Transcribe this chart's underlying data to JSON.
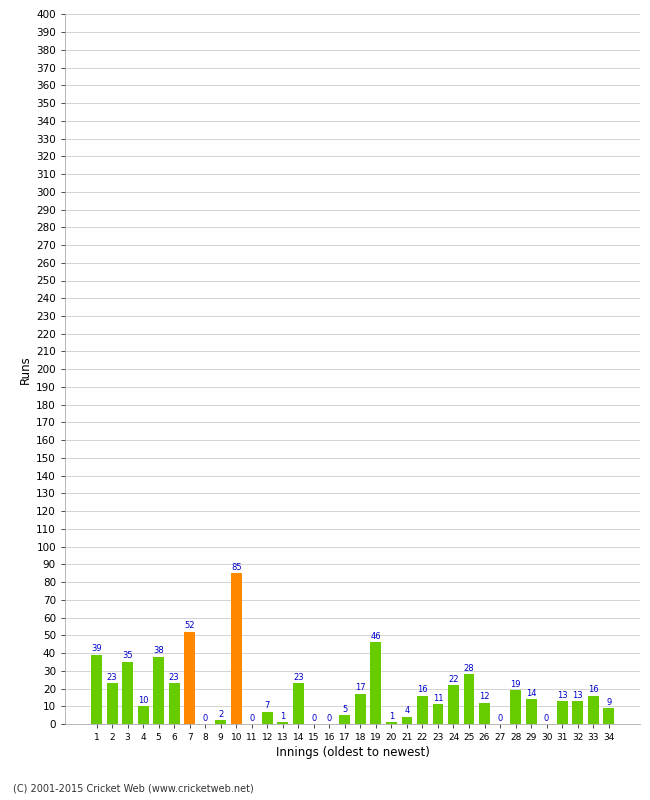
{
  "innings": [
    1,
    2,
    3,
    4,
    5,
    6,
    7,
    8,
    9,
    10,
    11,
    12,
    13,
    14,
    15,
    16,
    17,
    18,
    19,
    20,
    21,
    22,
    23,
    24,
    25,
    26,
    27,
    28,
    29,
    30,
    31,
    32,
    33,
    34
  ],
  "runs": [
    39,
    23,
    35,
    10,
    38,
    23,
    52,
    0,
    2,
    85,
    0,
    7,
    1,
    23,
    0,
    0,
    5,
    17,
    46,
    1,
    4,
    16,
    11,
    22,
    28,
    12,
    0,
    19,
    14,
    0,
    13,
    13,
    16,
    9
  ],
  "colors": [
    "#66cc00",
    "#66cc00",
    "#66cc00",
    "#66cc00",
    "#66cc00",
    "#66cc00",
    "#ff8800",
    "#66cc00",
    "#66cc00",
    "#ff8800",
    "#66cc00",
    "#66cc00",
    "#66cc00",
    "#66cc00",
    "#66cc00",
    "#66cc00",
    "#66cc00",
    "#66cc00",
    "#66cc00",
    "#66cc00",
    "#66cc00",
    "#66cc00",
    "#66cc00",
    "#66cc00",
    "#66cc00",
    "#66cc00",
    "#66cc00",
    "#66cc00",
    "#66cc00",
    "#66cc00",
    "#66cc00",
    "#66cc00",
    "#66cc00",
    "#66cc00"
  ],
  "ylabel": "Runs",
  "xlabel": "Innings (oldest to newest)",
  "ylim": [
    0,
    400
  ],
  "yticks": [
    0,
    10,
    20,
    30,
    40,
    50,
    60,
    70,
    80,
    90,
    100,
    110,
    120,
    130,
    140,
    150,
    160,
    170,
    180,
    190,
    200,
    210,
    220,
    230,
    240,
    250,
    260,
    270,
    280,
    290,
    300,
    310,
    320,
    330,
    340,
    350,
    360,
    370,
    380,
    390,
    400
  ],
  "bg_color": "#ffffff",
  "grid_color": "#cccccc",
  "label_color": "#0000cc",
  "footer": "(C) 2001-2015 Cricket Web (www.cricketweb.net)"
}
